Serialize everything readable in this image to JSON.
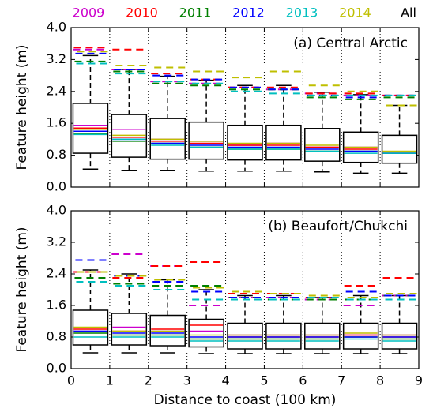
{
  "chart_data": [
    {
      "type": "box",
      "title": "(a) Central Arctic",
      "ylabel": "Feature height (m)",
      "xlim": [
        0,
        9
      ],
      "xticks": [
        0,
        1,
        2,
        3,
        4,
        5,
        6,
        7,
        8,
        9
      ],
      "ylim": [
        0,
        4
      ],
      "yticks": [
        {
          "value": 0,
          "label": "0.0"
        },
        0.8,
        1.6,
        2.4,
        3.2,
        {
          "value": 4,
          "label": "4.0"
        }
      ],
      "grid": true,
      "series": [
        {
          "name": "2009",
          "color": "#cc00cc",
          "medians": [
            1.55,
            1.45,
            1.2,
            1.15,
            1.05,
            1.1,
            1.0,
            1.0,
            0.85
          ],
          "p95": [
            3.45,
            2.95,
            2.65,
            2.6,
            2.5,
            2.45,
            2.35,
            2.3,
            2.3
          ]
        },
        {
          "name": "2010",
          "color": "#ff0000",
          "medians": [
            1.48,
            1.25,
            1.15,
            1.1,
            1.05,
            1.05,
            1.0,
            0.95,
            0.85
          ],
          "p95": [
            3.5,
            3.45,
            2.85,
            2.7,
            2.5,
            2.5,
            2.35,
            2.35,
            2.3
          ]
        },
        {
          "name": "2011",
          "color": "#008000",
          "medians": [
            1.35,
            1.15,
            1.1,
            1.0,
            0.95,
            0.95,
            0.9,
            0.9,
            0.85
          ],
          "p95": [
            3.15,
            2.9,
            2.6,
            2.55,
            2.45,
            2.45,
            2.25,
            2.2,
            2.25
          ]
        },
        {
          "name": "2012",
          "color": "#0000ff",
          "medians": [
            1.4,
            1.2,
            1.1,
            1.05,
            1.0,
            1.0,
            0.95,
            0.9,
            0.85
          ],
          "p95": [
            3.35,
            2.95,
            2.8,
            2.7,
            2.5,
            2.45,
            2.3,
            2.25,
            2.3
          ]
        },
        {
          "name": "2013",
          "color": "#00bfbf",
          "medians": [
            1.32,
            1.2,
            1.05,
            1.0,
            0.95,
            0.95,
            0.9,
            0.85,
            0.85
          ],
          "p95": [
            3.1,
            2.85,
            2.65,
            2.6,
            2.4,
            2.35,
            2.3,
            2.3,
            2.3
          ]
        },
        {
          "name": "2014",
          "color": "#bfbf00",
          "medians": [
            1.45,
            1.3,
            1.2,
            1.15,
            1.1,
            1.1,
            1.05,
            1.0,
            0.9
          ],
          "p95": [
            3.4,
            3.05,
            3.0,
            2.9,
            2.75,
            2.9,
            2.55,
            2.4,
            2.05
          ]
        }
      ],
      "box": {
        "name": "All",
        "color": "#000000",
        "q1": [
          0.85,
          0.75,
          0.7,
          0.7,
          0.68,
          0.68,
          0.65,
          0.62,
          0.6
        ],
        "q3": [
          2.1,
          1.82,
          1.72,
          1.63,
          1.55,
          1.55,
          1.47,
          1.38,
          1.3
        ],
        "whislo": [
          0.45,
          0.42,
          0.42,
          0.4,
          0.4,
          0.4,
          0.38,
          0.35,
          0.35
        ],
        "whishi": [
          3.3,
          2.95,
          2.78,
          2.68,
          2.55,
          2.55,
          2.38,
          2.32,
          2.05
        ]
      }
    },
    {
      "type": "box",
      "title": "(b) Beaufort/Chukchi",
      "ylabel": "Feature height (m)",
      "xlabel": "Distance to coast (100 km)",
      "xlim": [
        0,
        9
      ],
      "xticks": [
        0,
        1,
        2,
        3,
        4,
        5,
        6,
        7,
        8,
        9
      ],
      "ylim": [
        0,
        4
      ],
      "yticks": [
        {
          "value": 0,
          "label": "0.0"
        },
        0.8,
        1.6,
        2.4,
        3.2,
        {
          "value": 4,
          "label": "4.0"
        }
      ],
      "grid": true,
      "series": [
        {
          "medians": [
            0.95,
            1.05,
            0.95,
            0.95,
            0.85,
            0.85,
            0.85,
            0.85,
            0.85
          ],
          "p95": [
            2.45,
            2.9,
            2.6,
            1.6,
            1.8,
            1.8,
            1.75,
            1.6,
            1.85
          ]
        },
        {
          "medians": [
            1.0,
            0.95,
            1.0,
            1.1,
            0.8,
            0.8,
            0.8,
            0.85,
            0.8
          ],
          "p95": [
            2.45,
            2.3,
            2.6,
            2.7,
            1.9,
            1.9,
            1.8,
            2.1,
            2.3
          ]
        },
        {
          "medians": [
            0.9,
            0.85,
            0.85,
            0.75,
            0.75,
            0.75,
            0.75,
            0.8,
            0.75
          ],
          "p95": [
            2.3,
            2.15,
            2.1,
            2.1,
            1.8,
            1.75,
            1.75,
            1.75,
            1.85
          ]
        },
        {
          "medians": [
            0.95,
            0.9,
            0.9,
            0.8,
            0.8,
            0.8,
            0.8,
            0.8,
            0.8
          ],
          "p95": [
            2.75,
            2.35,
            2.2,
            1.95,
            1.8,
            1.8,
            1.8,
            1.95,
            1.85
          ]
        },
        {
          "medians": [
            0.8,
            0.8,
            0.8,
            0.7,
            0.7,
            0.7,
            0.7,
            0.75,
            0.7
          ],
          "p95": [
            2.2,
            2.1,
            2.0,
            1.75,
            1.75,
            1.75,
            1.8,
            1.75,
            1.75
          ]
        },
        {
          "medians": [
            1.05,
            0.95,
            0.95,
            0.85,
            0.85,
            0.85,
            0.85,
            0.9,
            0.85
          ],
          "p95": [
            2.45,
            2.35,
            2.25,
            2.05,
            1.95,
            1.9,
            1.85,
            1.8,
            1.9
          ]
        }
      ],
      "box": {
        "q1": [
          0.6,
          0.6,
          0.58,
          0.55,
          0.5,
          0.5,
          0.5,
          0.5,
          0.5
        ],
        "q3": [
          1.48,
          1.4,
          1.35,
          1.25,
          1.15,
          1.15,
          1.15,
          1.15,
          1.15
        ],
        "whislo": [
          0.4,
          0.4,
          0.4,
          0.38,
          0.38,
          0.38,
          0.38,
          0.38,
          0.38
        ],
        "whishi": [
          2.5,
          2.4,
          2.25,
          2.0,
          1.85,
          1.85,
          1.8,
          1.85,
          1.85
        ]
      }
    }
  ]
}
